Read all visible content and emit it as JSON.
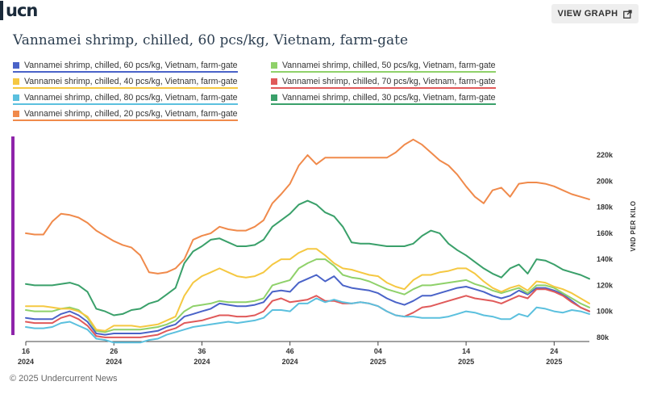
{
  "brand": {
    "logo_text": "ucn"
  },
  "header": {
    "view_graph_label": "VIEW GRAPH"
  },
  "footer": {
    "copyright": "© 2025 Undercurrent News"
  },
  "chart_data": {
    "type": "line",
    "title": "Vannamei shrimp, chilled, 60 pcs/kg, Vietnam, farm-gate",
    "ylabel": "VND PER KILO",
    "ylim": [
      70000,
      230000
    ],
    "yticks": [
      {
        "value": 80000,
        "label": "80k"
      },
      {
        "value": 100000,
        "label": "100k"
      },
      {
        "value": 120000,
        "label": "120k"
      },
      {
        "value": 140000,
        "label": "140k"
      },
      {
        "value": 160000,
        "label": "160k"
      },
      {
        "value": 180000,
        "label": "180k"
      },
      {
        "value": 200000,
        "label": "200k"
      },
      {
        "value": 220000,
        "label": "220k"
      }
    ],
    "xticks": [
      {
        "week": 0,
        "top": "16",
        "bottom": "2024"
      },
      {
        "week": 10,
        "top": "26",
        "bottom": "2024"
      },
      {
        "week": 20,
        "top": "36",
        "bottom": "2024"
      },
      {
        "week": 30,
        "top": "46",
        "bottom": "2024"
      },
      {
        "week": 40,
        "top": "04",
        "bottom": "2025"
      },
      {
        "week": 50,
        "top": "14",
        "bottom": "2025"
      },
      {
        "week": 60,
        "top": "24",
        "bottom": "2025"
      }
    ],
    "x_unit": "week number and year, weekly observations from week 16 2024 to week 24 2025",
    "grid": false,
    "legend_position": "top",
    "series": [
      {
        "name": "Vannamei shrimp, chilled, 60 pcs/kg, Vietnam, farm-gate",
        "color": "#4a63c8",
        "values": [
          95000,
          94000,
          94000,
          94000,
          98000,
          100000,
          97000,
          92000,
          83000,
          82000,
          83000,
          83000,
          83000,
          83000,
          84000,
          85000,
          88000,
          90000,
          96000,
          98000,
          100000,
          102000,
          106000,
          105000,
          104000,
          104000,
          105000,
          107000,
          115000,
          116000,
          115000,
          122000,
          125000,
          128000,
          123000,
          127000,
          120000,
          118000,
          117000,
          116000,
          114000,
          110000,
          107000,
          105000,
          108000,
          112000,
          112000,
          114000,
          116000,
          118000,
          119000,
          117000,
          115000,
          112000,
          110000,
          112000,
          116000,
          113000,
          118000,
          118000,
          116000,
          113000,
          108000,
          103000,
          100000
        ]
      },
      {
        "name": "Vannamei shrimp, chilled, 50 pcs/kg, Vietnam, farm-gate",
        "color": "#8fd16a",
        "values": [
          101000,
          100000,
          100000,
          100000,
          102000,
          103000,
          101000,
          95000,
          85000,
          84000,
          86000,
          86000,
          86000,
          86000,
          87000,
          88000,
          90000,
          93000,
          100000,
          104000,
          105000,
          106000,
          108000,
          107000,
          107000,
          107000,
          108000,
          110000,
          120000,
          122000,
          124000,
          133000,
          137000,
          140000,
          140000,
          135000,
          128000,
          126000,
          125000,
          123000,
          120000,
          117000,
          115000,
          113000,
          117000,
          120000,
          120000,
          121000,
          122000,
          123000,
          124000,
          121000,
          119000,
          116000,
          114000,
          116000,
          118000,
          114000,
          120000,
          120000,
          118000,
          114000,
          110000,
          106000,
          103000
        ]
      },
      {
        "name": "Vannamei shrimp, chilled, 40 pcs/kg, Vietnam, farm-gate",
        "color": "#f5c842",
        "values": [
          104000,
          104000,
          104000,
          103000,
          102000,
          102000,
          100000,
          96000,
          86000,
          85000,
          89000,
          89000,
          89000,
          88000,
          89000,
          90000,
          93000,
          96000,
          112000,
          122000,
          127000,
          130000,
          133000,
          130000,
          127000,
          126000,
          127000,
          130000,
          136000,
          140000,
          140000,
          145000,
          148000,
          148000,
          143000,
          137000,
          133000,
          132000,
          130000,
          128000,
          127000,
          122000,
          119000,
          117000,
          124000,
          128000,
          128000,
          130000,
          131000,
          133000,
          133000,
          129000,
          123000,
          118000,
          115000,
          118000,
          120000,
          116000,
          123000,
          122000,
          119000,
          117000,
          114000,
          110000,
          106000
        ]
      },
      {
        "name": "Vannamei shrimp, chilled, 70 pcs/kg, Vietnam, farm-gate",
        "color": "#e05a5a",
        "values": [
          92000,
          91000,
          91000,
          91000,
          95000,
          97000,
          94000,
          89000,
          81000,
          80000,
          80000,
          80000,
          80000,
          80000,
          81000,
          82000,
          85000,
          87000,
          91000,
          92000,
          93000,
          95000,
          97000,
          97000,
          96000,
          96000,
          97000,
          100000,
          108000,
          110000,
          107000,
          108000,
          109000,
          112000,
          108000,
          108000,
          106000,
          106000,
          107000,
          106000,
          104000,
          100000,
          97000,
          96000,
          99000,
          103000,
          104000,
          106000,
          108000,
          110000,
          112000,
          110000,
          109000,
          108000,
          106000,
          109000,
          112000,
          110000,
          117000,
          117000,
          115000,
          112000,
          107000,
          103000,
          100000
        ]
      },
      {
        "name": "Vannamei shrimp, chilled, 80 pcs/kg, Vietnam, farm-gate",
        "color": "#5bc0de",
        "values": [
          88000,
          87000,
          87000,
          88000,
          91000,
          92000,
          89000,
          86000,
          79000,
          78000,
          76000,
          76000,
          76000,
          76000,
          78000,
          79000,
          82000,
          84000,
          86000,
          88000,
          89000,
          90000,
          91000,
          92000,
          91000,
          92000,
          93000,
          95000,
          101000,
          101000,
          100000,
          106000,
          106000,
          110000,
          107000,
          109000,
          107000,
          106000,
          107000,
          106000,
          104000,
          100000,
          97000,
          96000,
          96000,
          95000,
          95000,
          95000,
          96000,
          98000,
          100000,
          99000,
          97000,
          96000,
          94000,
          94000,
          98000,
          96000,
          103000,
          102000,
          100000,
          99000,
          101000,
          100000,
          98000
        ]
      },
      {
        "name": "Vannamei shrimp, chilled, 30 pcs/kg, Vietnam, farm-gate",
        "color": "#3aa06a",
        "values": [
          121000,
          120000,
          120000,
          120000,
          121000,
          122000,
          120000,
          115000,
          102000,
          100000,
          97000,
          98000,
          101000,
          102000,
          106000,
          108000,
          113000,
          118000,
          137000,
          146000,
          150000,
          155000,
          156000,
          153000,
          150000,
          150000,
          151000,
          155000,
          165000,
          170000,
          175000,
          182000,
          185000,
          182000,
          176000,
          173000,
          165000,
          153000,
          152000,
          152000,
          151000,
          150000,
          150000,
          150000,
          152000,
          158000,
          162000,
          160000,
          152000,
          147000,
          143000,
          138000,
          133000,
          129000,
          126000,
          133000,
          136000,
          129000,
          140000,
          139000,
          136000,
          132000,
          130000,
          128000,
          125000
        ]
      },
      {
        "name": "Vannamei shrimp, chilled, 20 pcs/kg, Vietnam, farm-gate",
        "color": "#f08a4b",
        "values": [
          160000,
          159000,
          159000,
          169000,
          175000,
          174000,
          172000,
          168000,
          162000,
          158000,
          154000,
          151000,
          149000,
          143000,
          130000,
          129000,
          130000,
          133000,
          140000,
          155000,
          158000,
          160000,
          165000,
          163000,
          162000,
          162000,
          165000,
          170000,
          183000,
          190000,
          198000,
          212000,
          220000,
          213000,
          218000,
          218000,
          218000,
          218000,
          218000,
          218000,
          218000,
          218000,
          222000,
          228000,
          232000,
          228000,
          222000,
          216000,
          212000,
          205000,
          196000,
          188000,
          183000,
          193000,
          195000,
          188000,
          198000,
          199000,
          199000,
          198000,
          196000,
          193000,
          190000,
          188000,
          186000
        ]
      }
    ]
  }
}
